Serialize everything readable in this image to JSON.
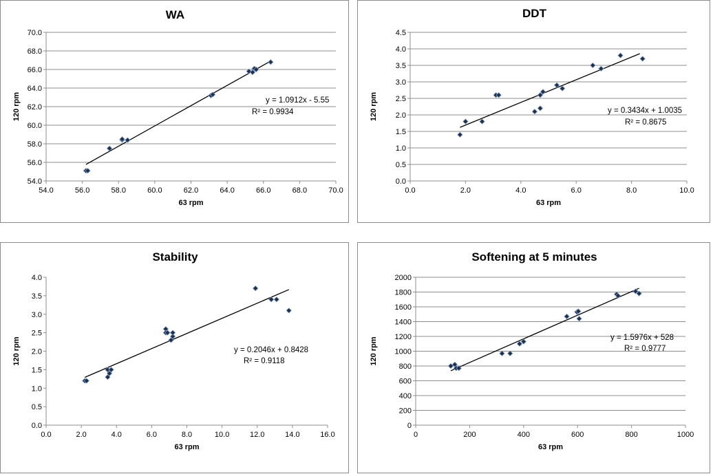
{
  "chart_data": [
    {
      "type": "scatter",
      "title": "WA",
      "xlabel": "63 rpm",
      "ylabel": "120 rpm",
      "xlim": [
        54,
        70
      ],
      "ylim": [
        54,
        70
      ],
      "xticks": [
        "54.0",
        "56.0",
        "58.0",
        "60.0",
        "62.0",
        "64.0",
        "66.0",
        "68.0",
        "70.0"
      ],
      "yticks": [
        "54.0",
        "56.0",
        "58.0",
        "60.0",
        "62.0",
        "64.0",
        "66.0",
        "68.0",
        "70.0"
      ],
      "points": [
        [
          56.2,
          55.1
        ],
        [
          56.3,
          55.1
        ],
        [
          57.5,
          57.5
        ],
        [
          58.2,
          58.4
        ],
        [
          58.2,
          58.5
        ],
        [
          58.5,
          58.4
        ],
        [
          63.1,
          63.2
        ],
        [
          63.2,
          63.3
        ],
        [
          65.2,
          65.8
        ],
        [
          65.4,
          65.7
        ],
        [
          65.5,
          66.1
        ],
        [
          65.6,
          66.0
        ],
        [
          66.4,
          66.8
        ]
      ],
      "trendline": {
        "x": [
          56.2,
          66.4
        ]
      },
      "equation": "y = 1.0912x - 5.55",
      "r2": "R² = 0.9934",
      "gridlines": true
    },
    {
      "type": "scatter",
      "title": "DDT",
      "xlabel": "63 rpm",
      "ylabel": "120 rpm",
      "xlim": [
        0,
        10
      ],
      "ylim": [
        0,
        4.5
      ],
      "xticks": [
        "0.0",
        "2.0",
        "4.0",
        "6.0",
        "8.0",
        "10.0"
      ],
      "yticks": [
        "0.0",
        "0.5",
        "1.0",
        "1.5",
        "2.0",
        "2.5",
        "3.0",
        "3.5",
        "4.0",
        "4.5"
      ],
      "points": [
        [
          1.8,
          1.4
        ],
        [
          2.0,
          1.8
        ],
        [
          2.6,
          1.8
        ],
        [
          3.1,
          2.6
        ],
        [
          3.2,
          2.6
        ],
        [
          4.5,
          2.1
        ],
        [
          4.7,
          2.2
        ],
        [
          4.7,
          2.6
        ],
        [
          4.8,
          2.7
        ],
        [
          5.3,
          2.9
        ],
        [
          5.5,
          2.8
        ],
        [
          6.6,
          3.5
        ],
        [
          6.9,
          3.4
        ],
        [
          7.6,
          3.8
        ],
        [
          8.4,
          3.7
        ]
      ],
      "trendline": {
        "x": [
          1.8,
          8.3
        ]
      },
      "equation": "y = 0.3434x + 1.0035",
      "r2": "R² = 0.8675",
      "gridlines": true
    },
    {
      "type": "scatter",
      "title": "Stability",
      "xlabel": "63 rpm",
      "ylabel": "120 rpm",
      "xlim": [
        0,
        16
      ],
      "ylim": [
        0,
        4
      ],
      "xticks": [
        "0.0",
        "2.0",
        "4.0",
        "6.0",
        "8.0",
        "10.0",
        "12.0",
        "14.0",
        "16.0"
      ],
      "yticks": [
        "0.0",
        "0.5",
        "1.0",
        "1.5",
        "2.0",
        "2.5",
        "3.0",
        "3.5",
        "4.0"
      ],
      "points": [
        [
          2.2,
          1.2
        ],
        [
          2.3,
          1.2
        ],
        [
          3.5,
          1.5
        ],
        [
          3.5,
          1.3
        ],
        [
          3.6,
          1.4
        ],
        [
          3.7,
          1.5
        ],
        [
          6.8,
          2.6
        ],
        [
          6.8,
          2.5
        ],
        [
          6.9,
          2.5
        ],
        [
          7.1,
          2.3
        ],
        [
          7.2,
          2.4
        ],
        [
          7.2,
          2.5
        ],
        [
          11.9,
          3.7
        ],
        [
          12.8,
          3.4
        ],
        [
          13.1,
          3.4
        ],
        [
          13.8,
          3.1
        ]
      ],
      "trendline": {
        "x": [
          2.2,
          13.8
        ]
      },
      "equation": "y = 0.2046x + 0.8428",
      "r2": "R² = 0.9118",
      "gridlines": false
    },
    {
      "type": "scatter",
      "title": "Softening at 5 minutes",
      "xlabel": "63 rpm",
      "ylabel": "120 rpm",
      "xlim": [
        0,
        1000
      ],
      "ylim": [
        0,
        2000
      ],
      "xticks": [
        "0",
        "200",
        "400",
        "600",
        "800",
        "1000"
      ],
      "yticks": [
        "0",
        "200",
        "400",
        "600",
        "800",
        "1000",
        "1200",
        "1400",
        "1600",
        "1800",
        "2000"
      ],
      "points": [
        [
          130,
          800
        ],
        [
          145,
          820
        ],
        [
          150,
          770
        ],
        [
          160,
          770
        ],
        [
          320,
          970
        ],
        [
          350,
          970
        ],
        [
          385,
          1100
        ],
        [
          400,
          1130
        ],
        [
          560,
          1470
        ],
        [
          598,
          1530
        ],
        [
          603,
          1540
        ],
        [
          606,
          1440
        ],
        [
          745,
          1770
        ],
        [
          750,
          1750
        ],
        [
          815,
          1810
        ],
        [
          828,
          1780
        ]
      ],
      "trendline": {
        "x": [
          130,
          828
        ]
      },
      "equation": "y = 1.5976x + 528",
      "r2": "R² = 0.9777",
      "gridlines": true
    }
  ]
}
